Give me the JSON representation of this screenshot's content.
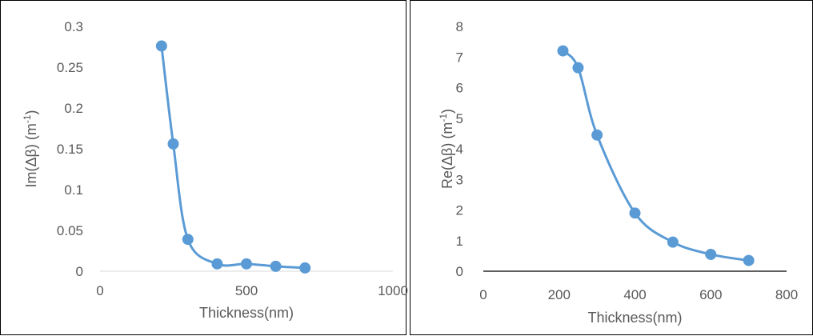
{
  "chart_data": [
    {
      "type": "scatter",
      "smooth": true,
      "markers": true,
      "xlabel": "Thickness(nm)",
      "ylabel_main": "Im(Δβ)  (m",
      "ylabel_sup": "-1",
      "ylabel_end": ")",
      "xlim": [
        0,
        1000
      ],
      "ylim": [
        0,
        0.3
      ],
      "xticks": [
        "0",
        "500",
        "1000"
      ],
      "yticks": [
        "0",
        "0.05",
        "0.1",
        "0.15",
        "0.2",
        "0.25",
        "0.3"
      ],
      "grid": false,
      "legend": "none",
      "series": [
        {
          "color": "#5B9BD5",
          "x": [
            210,
            250,
            300,
            400,
            500,
            600,
            700
          ],
          "y": [
            0.276,
            0.156,
            0.039,
            0.009,
            0.009,
            0.006,
            0.004
          ]
        }
      ]
    },
    {
      "type": "scatter",
      "smooth": true,
      "markers": true,
      "xlabel": "Thickness(nm)",
      "ylabel_main": "Re(Δβ)  (m",
      "ylabel_sup": "-1",
      "ylabel_end": ")",
      "xlim": [
        0,
        800
      ],
      "ylim": [
        0,
        8
      ],
      "xticks": [
        "0",
        "200",
        "400",
        "600",
        "800"
      ],
      "yticks": [
        "0",
        "1",
        "2",
        "3",
        "4",
        "5",
        "6",
        "7",
        "8"
      ],
      "grid": false,
      "legend": "none",
      "series": [
        {
          "color": "#5B9BD5",
          "x": [
            210,
            250,
            300,
            400,
            500,
            600,
            700
          ],
          "y": [
            7.2,
            6.65,
            4.45,
            1.9,
            0.95,
            0.55,
            0.35
          ]
        }
      ]
    }
  ]
}
